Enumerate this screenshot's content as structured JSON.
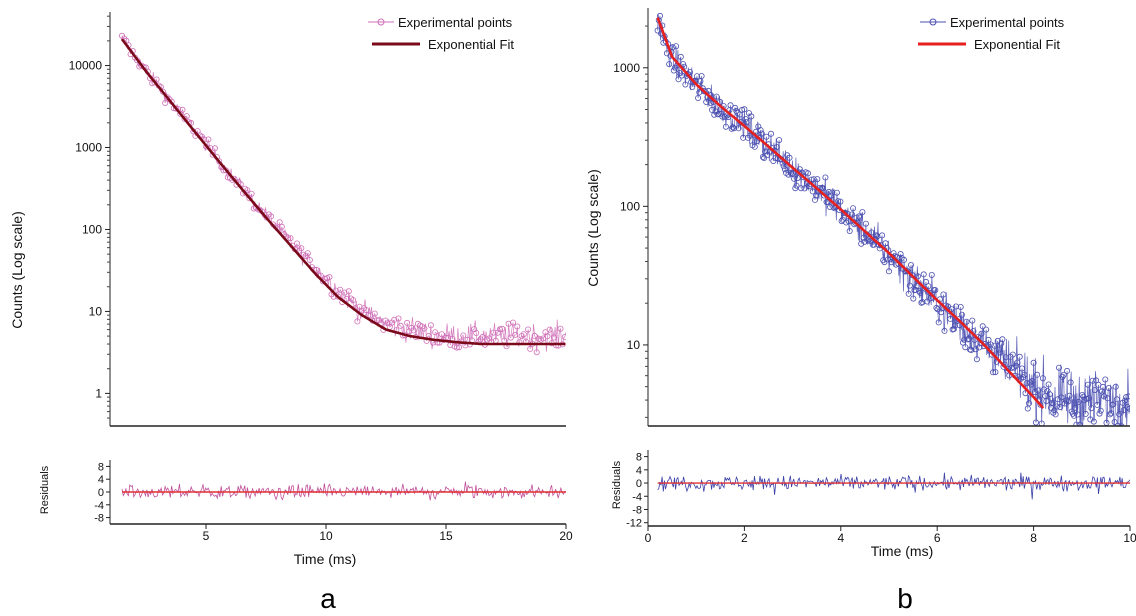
{
  "chart_data": [
    {
      "panel_label": "a",
      "type": "scatter",
      "title": "",
      "xlabel": "Time (ms)",
      "ylabel": "Counts (Log scale)",
      "xlim": [
        1,
        20
      ],
      "ylim": [
        0.4,
        45000
      ],
      "yscale": "log",
      "x_ticks": [
        5,
        10,
        15,
        20
      ],
      "y_ticks": [
        1,
        10,
        100,
        1000,
        10000
      ],
      "legend_position": "top-right",
      "colors": {
        "points": "#d070b8",
        "fit": "#7a0a1a",
        "residuals": "#c0509a",
        "residual_zero": "#e03030"
      },
      "series": [
        {
          "name": "Experimental points",
          "style": "points-with-lines",
          "x": [
            1.5,
            2.5,
            3.5,
            4.5,
            5.5,
            6.5,
            7.5,
            8.5,
            9.5,
            10.5,
            11.5,
            12.5,
            13.5,
            14.5,
            15.5,
            16.5,
            17.5,
            18.5,
            19.5
          ],
          "y": [
            21000,
            8600,
            3800,
            1650,
            720,
            320,
            150,
            70,
            35,
            18,
            10,
            7,
            6,
            5,
            5,
            5,
            5,
            5,
            5
          ]
        },
        {
          "name": "Exponential Fit",
          "style": "line",
          "x": [
            1.5,
            2.5,
            3.5,
            4.5,
            5.5,
            6.5,
            7.5,
            8.5,
            9.5,
            10.5,
            11.5,
            12.5,
            13.5,
            14.5,
            15.5,
            16.5,
            17.5,
            18.5,
            19.5,
            20
          ],
          "y": [
            21000,
            8500,
            3700,
            1600,
            700,
            310,
            140,
            65,
            30,
            15,
            9,
            6,
            5,
            4.5,
            4.2,
            4,
            4,
            4,
            4,
            4
          ]
        }
      ],
      "residuals": {
        "ylabel": "Residuals",
        "ylim": [
          -10,
          10
        ],
        "y_ticks": [
          -8,
          -4,
          0,
          4,
          8
        ],
        "amplitude": 4,
        "n_points": 340
      }
    },
    {
      "panel_label": "b",
      "type": "scatter",
      "title": "",
      "xlabel": "Time (ms)",
      "ylabel": "Counts (Log scale)",
      "xlim": [
        0,
        10
      ],
      "ylim": [
        2.6,
        2700
      ],
      "yscale": "log",
      "x_ticks": [
        0,
        2,
        4,
        6,
        8,
        10
      ],
      "y_ticks": [
        10,
        100,
        1000
      ],
      "legend_position": "top-right",
      "colors": {
        "points": "#4a4fb0",
        "fit": "#e62020",
        "residuals": "#3a40a8",
        "residual_zero": "#e03030"
      },
      "series": [
        {
          "name": "Experimental points",
          "style": "points-with-lines",
          "x": [
            0.2,
            0.5,
            1,
            1.5,
            2,
            2.5,
            3,
            3.5,
            4,
            4.5,
            5,
            5.5,
            6,
            6.5,
            7,
            7.5,
            8,
            8.5,
            9,
            9.5,
            10
          ],
          "y": [
            2200,
            1150,
            750,
            520,
            380,
            270,
            190,
            135,
            95,
            65,
            45,
            30,
            20,
            14,
            10,
            7,
            5,
            4,
            4,
            4,
            4
          ]
        },
        {
          "name": "Exponential Fit",
          "style": "line",
          "x": [
            0.2,
            0.5,
            1,
            1.5,
            2,
            2.5,
            3,
            3.5,
            4,
            4.5,
            5,
            5.5,
            6,
            6.5,
            7,
            7.5,
            8,
            8.2
          ],
          "y": [
            2300,
            1200,
            760,
            530,
            380,
            270,
            190,
            135,
            95,
            66,
            46,
            31,
            21,
            14.5,
            9.8,
            6.4,
            4.2,
            3.5
          ]
        }
      ],
      "residuals": {
        "ylabel": "Residuals",
        "ylim": [
          -13,
          10
        ],
        "y_ticks": [
          -12,
          -8,
          -4,
          0,
          4,
          8
        ],
        "amplitude": 4,
        "n_points": 420
      }
    }
  ]
}
